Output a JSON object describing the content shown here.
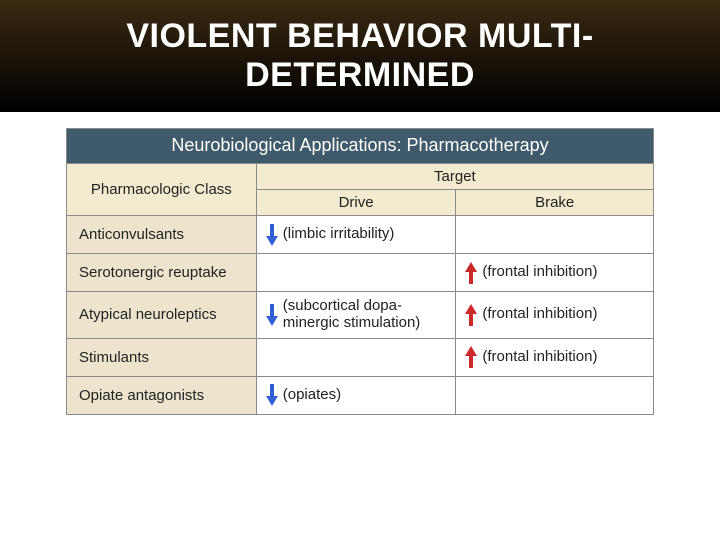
{
  "slide": {
    "title": "VIOLENT BEHAVIOR MULTI-\nDETERMINED"
  },
  "figure": {
    "title": "Neurobiological Applications: Pharmacotherapy",
    "headers": {
      "pharmacologic_class": "Pharmacologic Class",
      "target": "Target",
      "drive": "Drive",
      "brake": "Brake"
    },
    "arrow_colors": {
      "down": "#2f5fd1",
      "up": "#cc2a2a"
    },
    "header_bg": "#f3ebcf",
    "row_label_bg": "#ece4cc",
    "title_bg": "#3e5a6b",
    "border_color": "#8a8a8a",
    "rows": [
      {
        "label": "Anticonvulsants",
        "drive_dir": "down",
        "drive_text": "(limbic irritability)",
        "brake_dir": "",
        "brake_text": ""
      },
      {
        "label": "Serotonergic reuptake",
        "drive_dir": "",
        "drive_text": "",
        "brake_dir": "up",
        "brake_text": "(frontal inhibition)"
      },
      {
        "label": "Atypical neuroleptics",
        "drive_dir": "down",
        "drive_text": "(subcortical dopa-\nminergic stimulation)",
        "brake_dir": "up",
        "brake_text": "(frontal inhibition)"
      },
      {
        "label": "Stimulants",
        "drive_dir": "",
        "drive_text": "",
        "brake_dir": "up",
        "brake_text": "(frontal inhibition)"
      },
      {
        "label": "Opiate antagonists",
        "drive_dir": "down",
        "drive_text": "(opiates)",
        "brake_dir": "",
        "brake_text": ""
      }
    ]
  }
}
